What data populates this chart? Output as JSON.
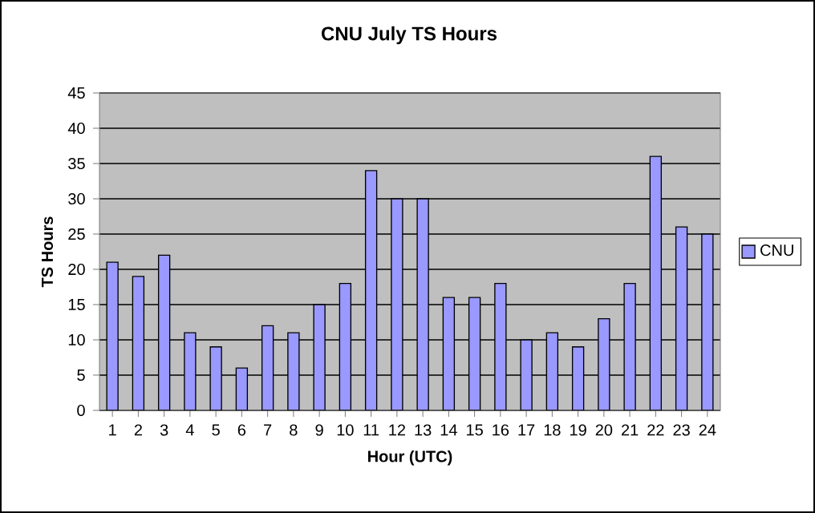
{
  "chart_data": {
    "type": "bar",
    "title": "CNU July TS Hours",
    "xlabel": "Hour (UTC)",
    "ylabel": "TS Hours",
    "categories": [
      "1",
      "2",
      "3",
      "4",
      "5",
      "6",
      "7",
      "8",
      "9",
      "10",
      "11",
      "12",
      "13",
      "14",
      "15",
      "16",
      "17",
      "18",
      "19",
      "20",
      "21",
      "22",
      "23",
      "24"
    ],
    "series": [
      {
        "name": "CNU",
        "color": "#9999ff",
        "values": [
          21,
          19,
          22,
          11,
          9,
          6,
          12,
          11,
          15,
          18,
          34,
          30,
          30,
          16,
          16,
          18,
          10,
          11,
          9,
          13,
          18,
          36,
          26,
          25
        ]
      }
    ],
    "ylim": [
      0,
      45
    ],
    "yticks": [
      0,
      5,
      10,
      15,
      20,
      25,
      30,
      35,
      40,
      45
    ],
    "grid": "y",
    "legend": "right"
  }
}
